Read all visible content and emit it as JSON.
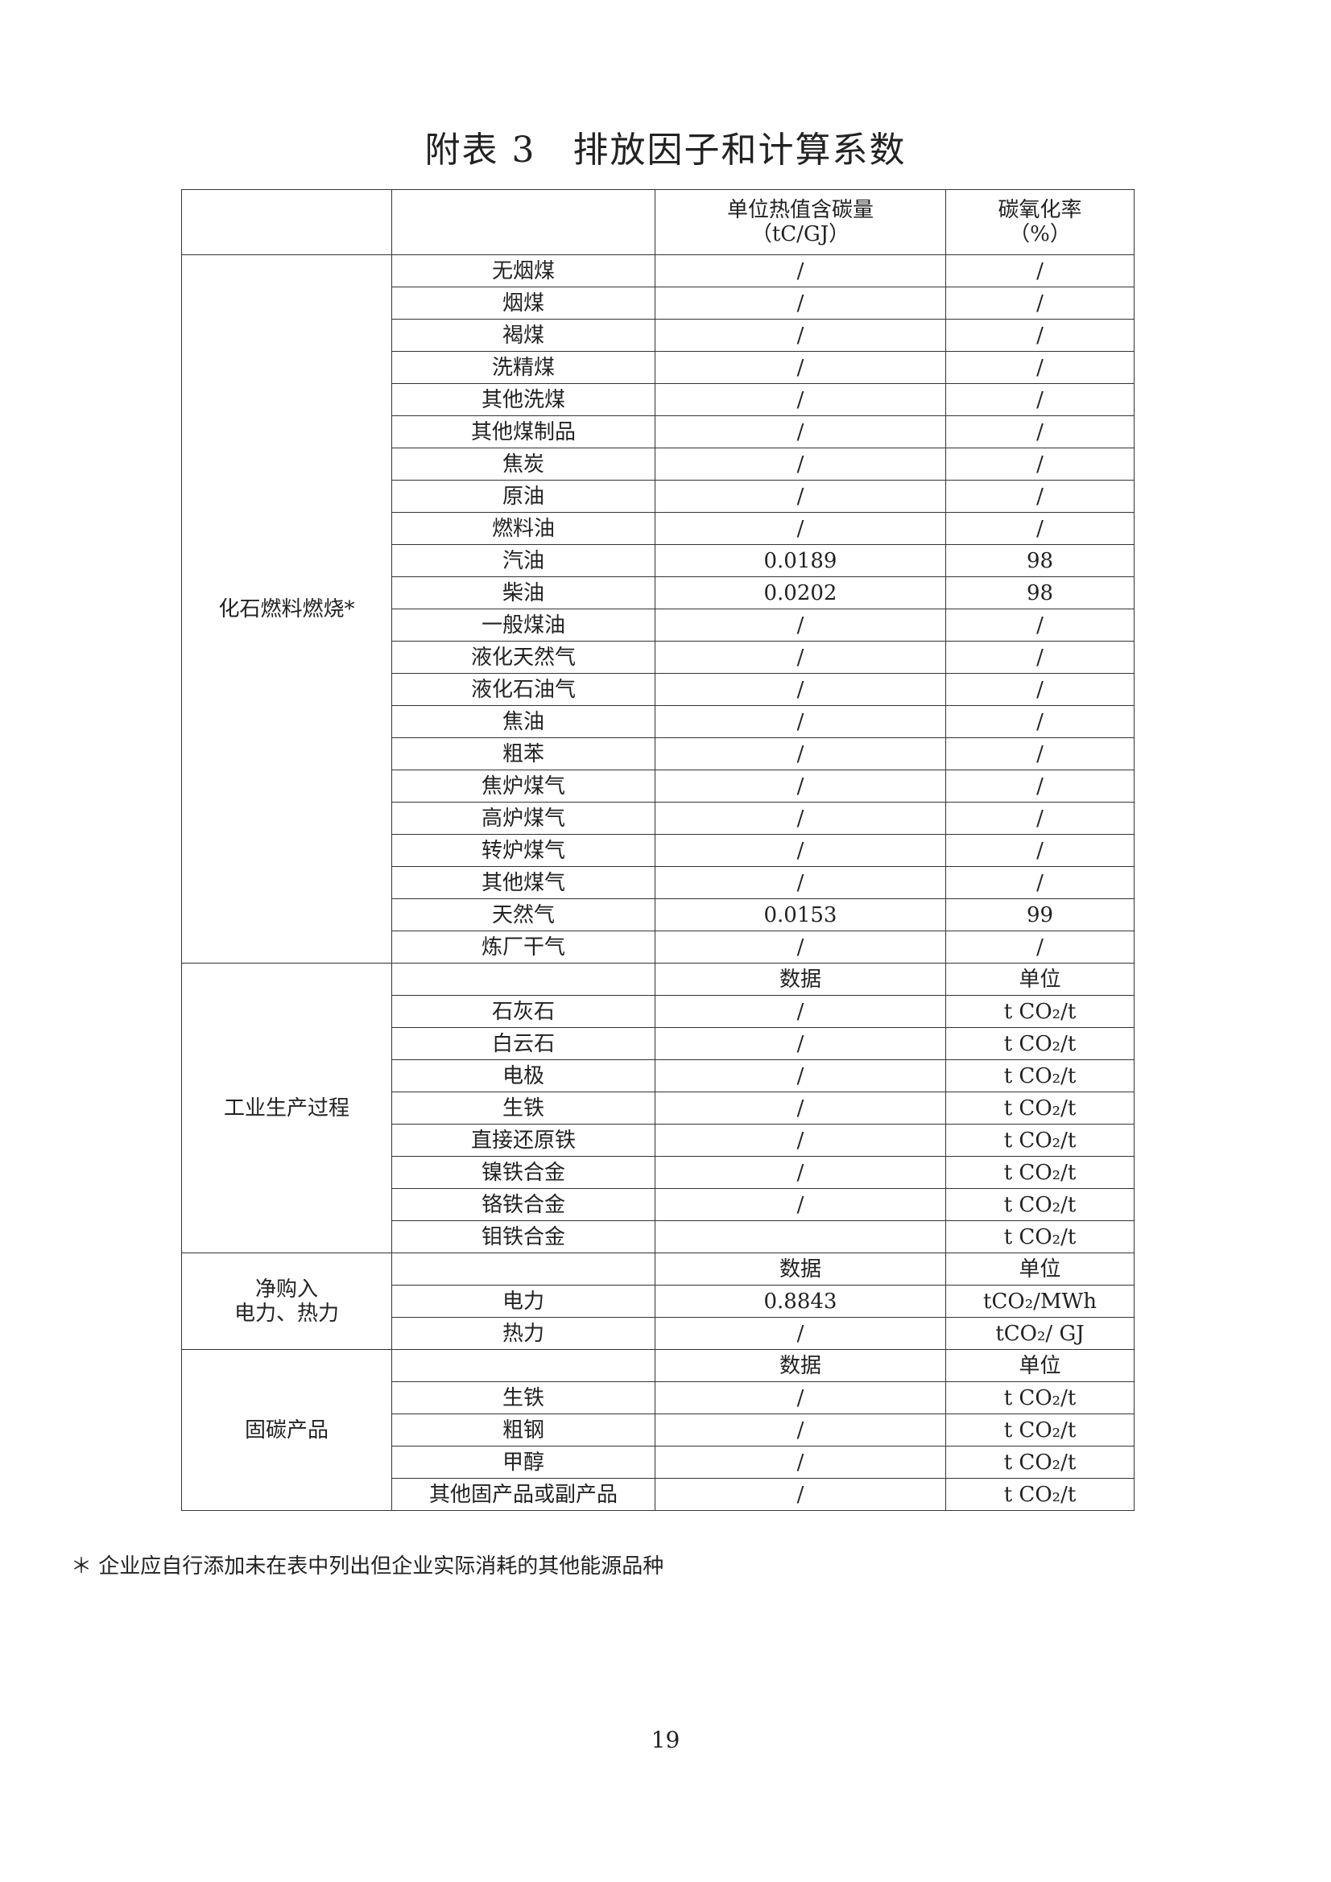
{
  "title": "附表 3　排放因子和计算系数",
  "header": {
    "col2": [
      "单位热值含碳量",
      "（tC/GJ）"
    ],
    "col3": [
      "碳氧化率",
      "（%）"
    ]
  },
  "sections": [
    {
      "name": "化石燃料燃烧*",
      "subheader": null,
      "rows": [
        [
          "无烟煤",
          "/",
          "/"
        ],
        [
          "烟煤",
          "/",
          "/"
        ],
        [
          "褐煤",
          "/",
          "/"
        ],
        [
          "洗精煤",
          "/",
          "/"
        ],
        [
          "其他洗煤",
          "/",
          "/"
        ],
        [
          "其他煤制品",
          "/",
          "/"
        ],
        [
          "焦炭",
          "/",
          "/"
        ],
        [
          "原油",
          "/",
          "/"
        ],
        [
          "燃料油",
          "/",
          "/"
        ],
        [
          "汽油",
          "0.0189",
          "98"
        ],
        [
          "柴油",
          "0.0202",
          "98"
        ],
        [
          "一般煤油",
          "/",
          "/"
        ],
        [
          "液化天然气",
          "/",
          "/"
        ],
        [
          "液化石油气",
          "/",
          "/"
        ],
        [
          "焦油",
          "/",
          "/"
        ],
        [
          "粗苯",
          "/",
          "/"
        ],
        [
          "焦炉煤气",
          "/",
          "/"
        ],
        [
          "高炉煤气",
          "/",
          "/"
        ],
        [
          "转炉煤气",
          "/",
          "/"
        ],
        [
          "其他煤气",
          "/",
          "/"
        ],
        [
          "天然气",
          "0.0153",
          "99"
        ],
        [
          "炼厂干气",
          "/",
          "/"
        ]
      ]
    },
    {
      "name": "工业生产过程",
      "subheader": [
        "数据",
        "单位"
      ],
      "rows": [
        [
          "石灰石",
          "/",
          "t CO₂/t"
        ],
        [
          "白云石",
          "/",
          "t CO₂/t"
        ],
        [
          "电极",
          "/",
          "t CO₂/t"
        ],
        [
          "生铁",
          "/",
          "t CO₂/t"
        ],
        [
          "直接还原铁",
          "/",
          "t CO₂/t"
        ],
        [
          "镍铁合金",
          "/",
          "t CO₂/t"
        ],
        [
          "铬铁合金",
          "/",
          "t CO₂/t"
        ],
        [
          "钼铁合金",
          "",
          "t CO₂/t"
        ]
      ]
    },
    {
      "name": "净购入\n电力、热力",
      "subheader": [
        "数据",
        "单位"
      ],
      "rows": [
        [
          "电力",
          "0.8843",
          "tCO₂/MWh"
        ],
        [
          "热力",
          "/",
          "tCO₂/ GJ"
        ]
      ]
    },
    {
      "name": "固碳产品",
      "subheader": [
        "数据",
        "单位"
      ],
      "rows": [
        [
          "生铁",
          "/",
          "t CO₂/t"
        ],
        [
          "粗钢",
          "/",
          "t CO₂/t"
        ],
        [
          "甲醇",
          "/",
          "t CO₂/t"
        ],
        [
          "其他固产品或副产品",
          "/",
          "t CO₂/t"
        ]
      ]
    }
  ],
  "footnote": "＊ 企业应自行添加未在表中列出但企业实际消耗的其他能源品种",
  "page_number": "19"
}
